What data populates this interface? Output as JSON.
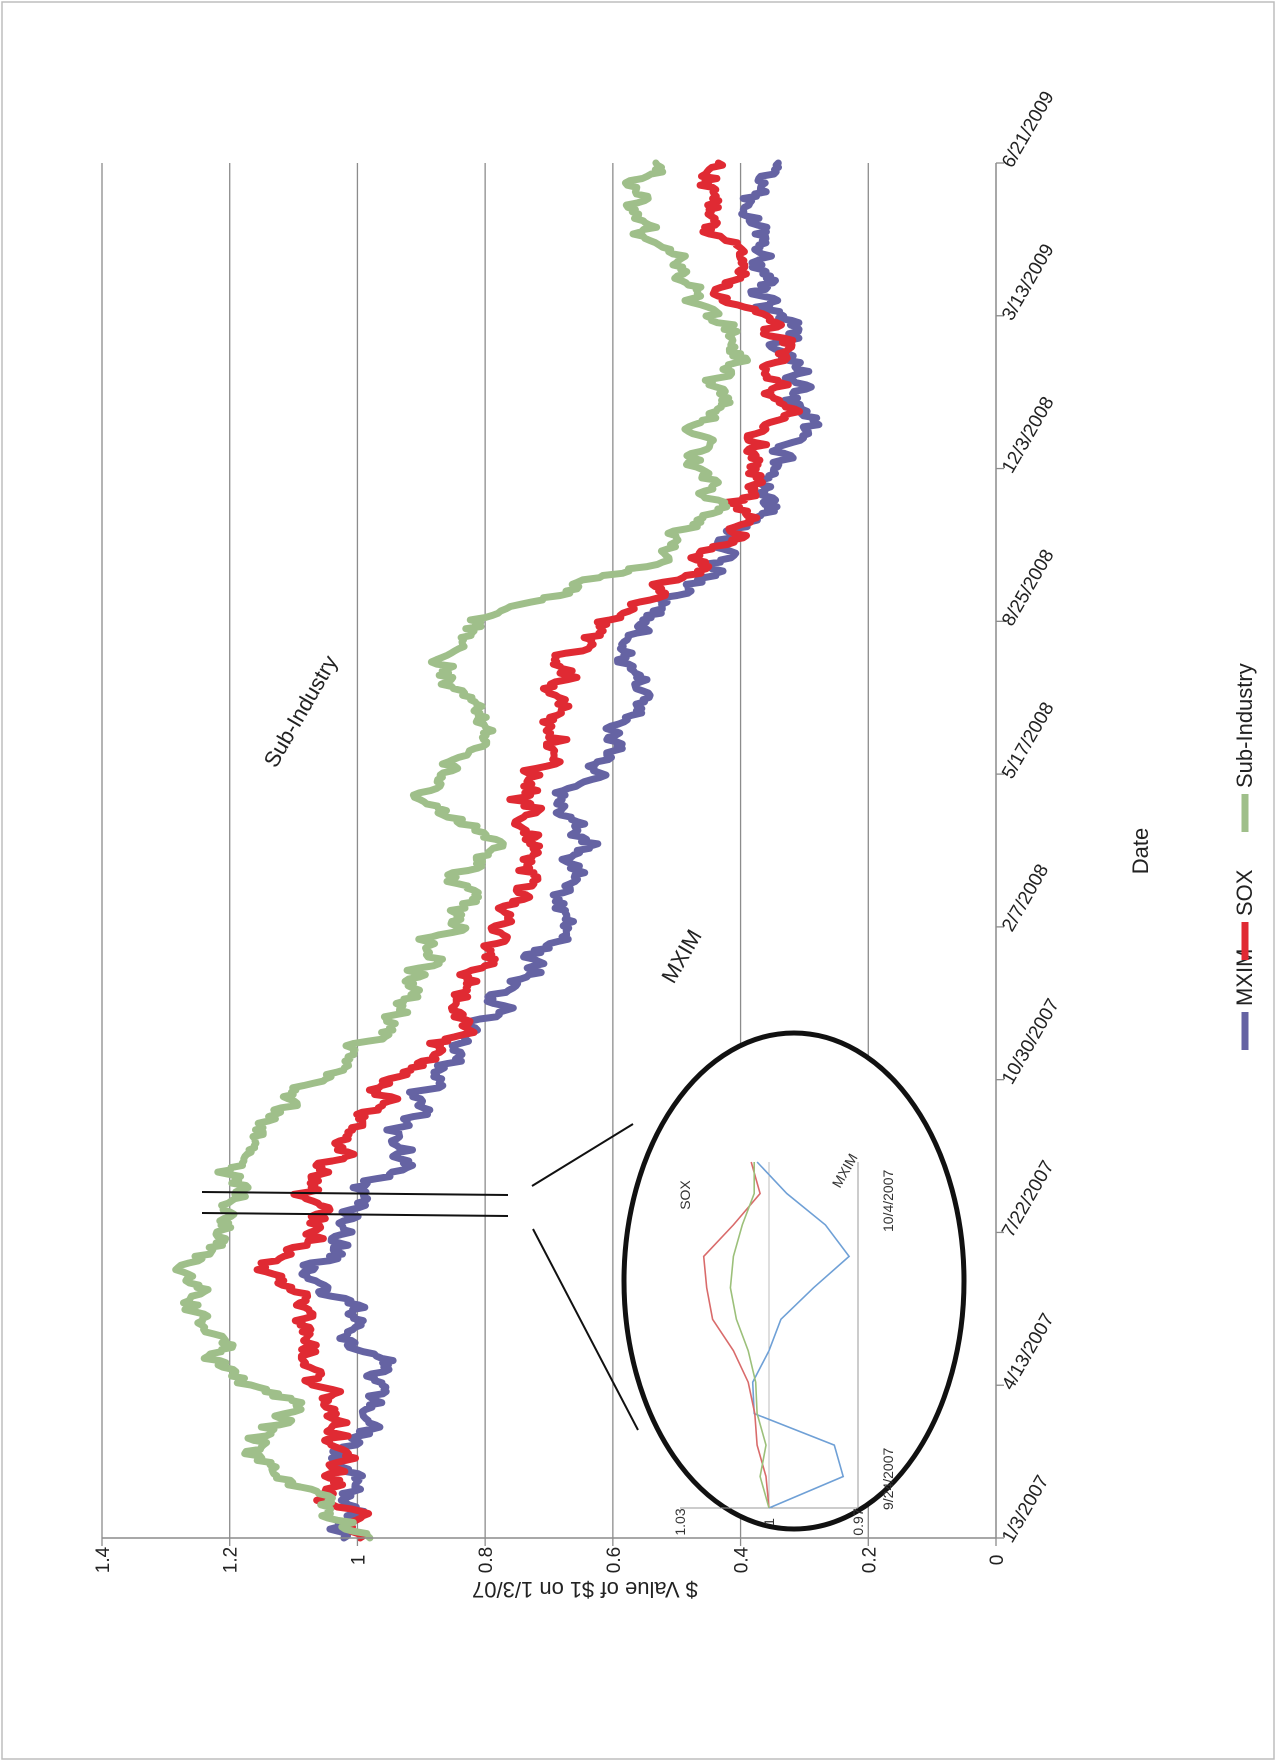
{
  "chart_data": {
    "type": "line",
    "orientation": "rotated 90 degrees clockwise",
    "xlabel": "Date",
    "ylabel": "$ Value of $1 on 1/3/07",
    "ylim": [
      0,
      1.4
    ],
    "y_ticks": [
      "0",
      "0.2",
      "0.4",
      "0.6",
      "0.8",
      "1",
      "1.2",
      "1.4"
    ],
    "x_ticks": [
      "1/3/2007",
      "4/13/2007",
      "7/22/2007",
      "10/30/2007",
      "2/7/2008",
      "5/17/2008",
      "8/25/2008",
      "12/3/2008",
      "3/13/2009",
      "6/21/2009"
    ],
    "grid": "horizontal gridlines",
    "legend_position": "bottom",
    "x": [
      "2007-01-03",
      "2007-02-01",
      "2007-03-01",
      "2007-04-01",
      "2007-05-01",
      "2007-06-01",
      "2007-07-01",
      "2007-07-15",
      "2007-08-01",
      "2007-09-01",
      "2007-10-01",
      "2007-11-01",
      "2007-12-01",
      "2008-01-01",
      "2008-02-01",
      "2008-03-01",
      "2008-04-01",
      "2008-05-01",
      "2008-06-01",
      "2008-07-01",
      "2008-08-01",
      "2008-09-01",
      "2008-10-01",
      "2008-11-01",
      "2008-12-01",
      "2009-01-01",
      "2009-02-01",
      "2009-03-01",
      "2009-04-01",
      "2009-05-01",
      "2009-06-01",
      "2009-06-21"
    ],
    "series": [
      {
        "name": "MXIM",
        "color": "#6563a3",
        "values": [
          1.03,
          1.04,
          1.02,
          0.95,
          0.97,
          1.0,
          1.05,
          1.03,
          1.01,
          0.95,
          0.91,
          0.87,
          0.82,
          0.75,
          0.68,
          0.67,
          0.64,
          0.7,
          0.62,
          0.57,
          0.56,
          0.52,
          0.42,
          0.38,
          0.33,
          0.32,
          0.3,
          0.32,
          0.36,
          0.38,
          0.38,
          0.37
        ]
      },
      {
        "name": "SOX",
        "color": "#e02a33",
        "values": [
          1.0,
          1.03,
          1.01,
          1.02,
          1.06,
          1.1,
          1.15,
          1.06,
          1.07,
          1.06,
          1.01,
          0.95,
          0.86,
          0.82,
          0.77,
          0.74,
          0.72,
          0.77,
          0.7,
          0.69,
          0.67,
          0.56,
          0.46,
          0.4,
          0.38,
          0.36,
          0.34,
          0.35,
          0.42,
          0.44,
          0.46,
          0.46
        ]
      },
      {
        "name": "Sub-Industry",
        "color": "#9fbf8a",
        "values": [
          1.0,
          1.06,
          1.17,
          1.09,
          1.22,
          1.25,
          1.28,
          1.22,
          1.16,
          1.18,
          1.15,
          1.05,
          0.95,
          0.91,
          0.88,
          0.82,
          0.8,
          0.9,
          0.83,
          0.81,
          0.88,
          0.77,
          0.55,
          0.45,
          0.46,
          0.46,
          0.42,
          0.43,
          0.47,
          0.55,
          0.56,
          0.57
        ]
      }
    ],
    "annotations": [
      "MXIM",
      "Sub-Industry"
    ],
    "inset": {
      "x_labels": [
        "9/24/2007",
        "10/4/2007"
      ],
      "y_ticks": [
        "0.97",
        "1",
        "1.03"
      ],
      "series_labels": [
        "SOX",
        "MXIM"
      ],
      "series": [
        {
          "name": "MXIM",
          "color": "#6fa0d6",
          "values": [
            1.0,
            0.975,
            0.978,
            1.005,
            1.0055,
            1.0,
            0.996,
            0.985,
            0.973,
            0.981,
            0.994,
            1.004
          ]
        },
        {
          "name": "SOX",
          "color": "#d96b6b",
          "values": [
            1.0,
            1.001,
            1.004,
            1.0048,
            1.007,
            1.012,
            1.019,
            1.021,
            1.022,
            1.012,
            1.003,
            1.006
          ]
        },
        {
          "name": "Sub-Industry",
          "color": "#9cc07a",
          "values": [
            1.0,
            1.003,
            1.001,
            1.004,
            1.0045,
            1.007,
            1.011,
            1.013,
            1.012,
            1.009,
            1.005,
            1.005
          ]
        }
      ]
    }
  }
}
